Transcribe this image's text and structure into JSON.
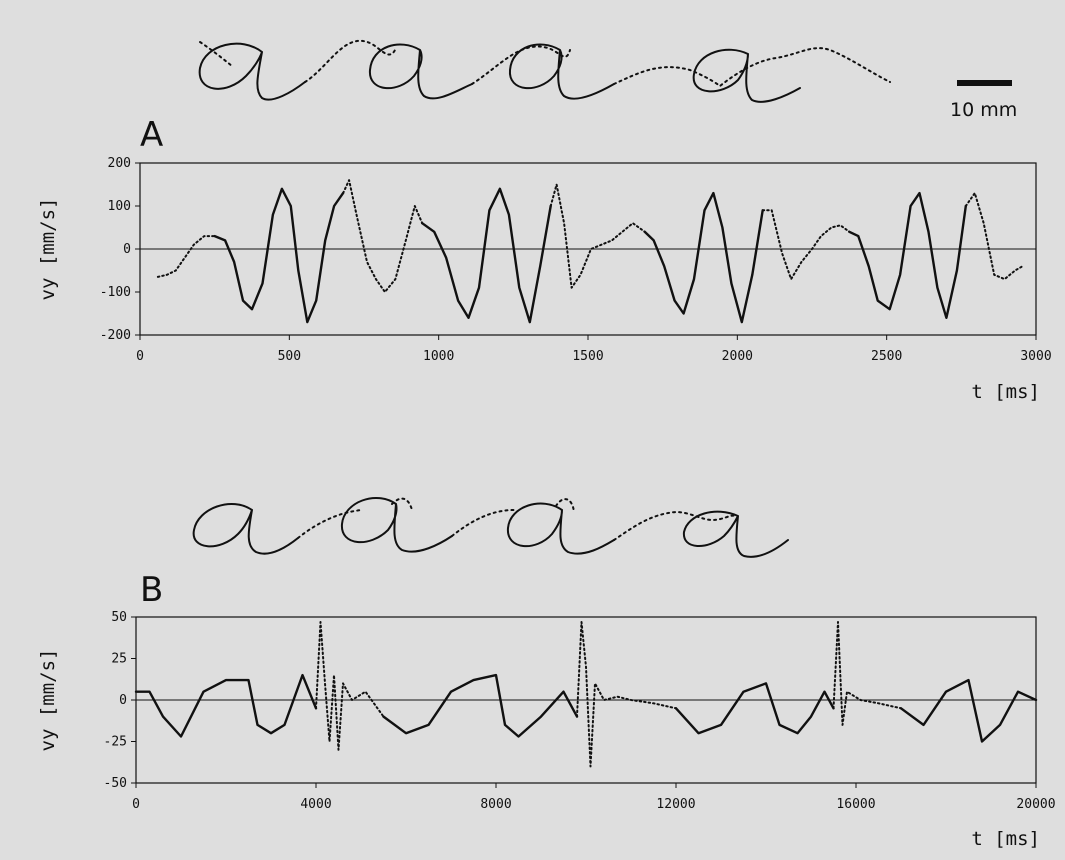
{
  "chart_data": [
    {
      "type": "line",
      "panel_label": "A",
      "xlabel": "t [ms]",
      "ylabel": "vy [mm/s]",
      "xlim": [
        0,
        3000
      ],
      "ylim": [
        -200,
        200
      ],
      "xticks": [
        0,
        500,
        1000,
        1500,
        2000,
        2500,
        3000
      ],
      "yticks": [
        200,
        100,
        0,
        -100,
        -200
      ],
      "zero_line": true,
      "scale_bar_label": "10 mm",
      "trace_style": "solid = letter strokes, dotted = connecting strokes",
      "series": [
        {
          "style": "solid",
          "segments": [
            {
              "t": [
                250,
                285,
                315,
                345,
                375,
                410,
                445,
                475,
                505,
                530,
                560,
                590,
                620,
                650,
                680
              ],
              "vy": [
                30,
                20,
                -30,
                -120,
                -140,
                -80,
                80,
                140,
                100,
                -50,
                -170,
                -120,
                20,
                100,
                130
              ]
            },
            {
              "t": [
                945,
                985,
                1025,
                1065,
                1100,
                1135,
                1170,
                1205,
                1235,
                1270,
                1305,
                1340,
                1375
              ],
              "vy": [
                60,
                40,
                -20,
                -120,
                -160,
                -90,
                90,
                140,
                80,
                -90,
                -170,
                -40,
                100
              ]
            },
            {
              "t": [
                1690,
                1720,
                1755,
                1790,
                1820,
                1855,
                1890,
                1920,
                1950,
                1980,
                2015,
                2050,
                2085
              ],
              "vy": [
                40,
                20,
                -40,
                -120,
                -150,
                -70,
                90,
                130,
                50,
                -80,
                -170,
                -60,
                90
              ]
            },
            {
              "t": [
                2375,
                2405,
                2440,
                2470,
                2510,
                2545,
                2580,
                2610,
                2640,
                2670,
                2700,
                2735,
                2765
              ],
              "vy": [
                40,
                30,
                -40,
                -120,
                -140,
                -60,
                100,
                130,
                40,
                -90,
                -160,
                -50,
                100
              ]
            }
          ]
        },
        {
          "style": "dotted",
          "segments": [
            {
              "t": [
                60,
                90,
                120,
                150,
                180,
                215,
                250
              ],
              "vy": [
                -65,
                -60,
                -50,
                -20,
                10,
                30,
                30
              ]
            },
            {
              "t": [
                680,
                700,
                725,
                760,
                790,
                820,
                855,
                890,
                920,
                945
              ],
              "vy": [
                130,
                160,
                80,
                -30,
                -70,
                -100,
                -70,
                20,
                100,
                60
              ]
            },
            {
              "t": [
                1375,
                1395,
                1420,
                1445,
                1475,
                1510,
                1545,
                1580,
                1615,
                1650,
                1690
              ],
              "vy": [
                100,
                150,
                60,
                -90,
                -60,
                0,
                10,
                20,
                40,
                60,
                40
              ]
            },
            {
              "t": [
                2085,
                2115,
                2150,
                2180,
                2215,
                2250,
                2280,
                2315,
                2345,
                2375
              ],
              "vy": [
                90,
                90,
                -10,
                -70,
                -30,
                0,
                30,
                50,
                55,
                40
              ]
            },
            {
              "t": [
                2765,
                2795,
                2825,
                2860,
                2895,
                2930,
                2955
              ],
              "vy": [
                100,
                130,
                60,
                -60,
                -70,
                -50,
                -40
              ]
            }
          ]
        }
      ]
    },
    {
      "type": "line",
      "panel_label": "B",
      "xlabel": "t [ms]",
      "ylabel": "vy [mm/s]",
      "xlim": [
        0,
        20000
      ],
      "ylim": [
        -50,
        50
      ],
      "xticks": [
        0,
        4000,
        8000,
        12000,
        16000,
        20000
      ],
      "yticks": [
        50,
        25,
        0,
        -25,
        -50
      ],
      "zero_line": true,
      "trace_style": "solid = letter strokes, dotted = connecting strokes",
      "series": [
        {
          "style": "solid",
          "segments": [
            {
              "t": [
                0,
                300,
                600,
                1000,
                1500,
                2000,
                2500,
                2700,
                3000,
                3300,
                3700,
                4000
              ],
              "vy": [
                5,
                5,
                -10,
                -22,
                5,
                12,
                12,
                -15,
                -20,
                -15,
                15,
                -5
              ]
            },
            {
              "t": [
                5500,
                6000,
                6500,
                7000,
                7500,
                8000,
                8200,
                8500,
                9000,
                9500,
                9800
              ],
              "vy": [
                -10,
                -20,
                -15,
                5,
                12,
                15,
                -15,
                -22,
                -10,
                5,
                -10
              ]
            },
            {
              "t": [
                12000,
                12500,
                13000,
                13500,
                14000,
                14300,
                14700,
                15000,
                15300,
                15500
              ],
              "vy": [
                -5,
                -20,
                -15,
                5,
                10,
                -15,
                -20,
                -10,
                5,
                -5
              ]
            },
            {
              "t": [
                17000,
                17500,
                18000,
                18500,
                18800,
                19200,
                19600,
                20000
              ],
              "vy": [
                -5,
                -15,
                5,
                12,
                -25,
                -15,
                5,
                0
              ]
            }
          ]
        },
        {
          "style": "dotted",
          "segments": [
            {
              "t": [
                4000,
                4100,
                4200,
                4300,
                4400,
                4500,
                4600,
                4800,
                5100,
                5500
              ],
              "vy": [
                -5,
                47,
                10,
                -25,
                15,
                -30,
                10,
                0,
                5,
                -10
              ]
            },
            {
              "t": [
                9800,
                9900,
                10000,
                10100,
                10200,
                10400,
                10700,
                11000,
                11500,
                12000
              ],
              "vy": [
                -10,
                47,
                20,
                -40,
                10,
                0,
                2,
                0,
                -2,
                -5
              ]
            },
            {
              "t": [
                15500,
                15600,
                15700,
                15800,
                16100,
                16500,
                17000
              ],
              "vy": [
                -5,
                47,
                -15,
                5,
                0,
                -2,
                -5
              ]
            }
          ]
        }
      ]
    }
  ]
}
